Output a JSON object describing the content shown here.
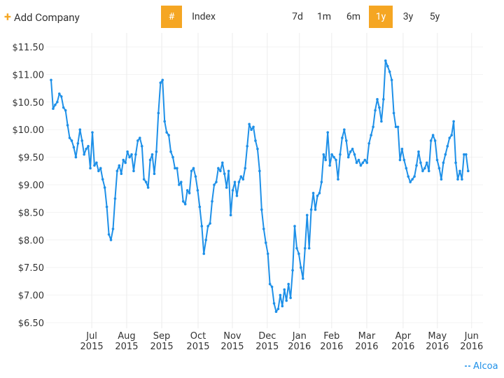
{
  "toolbar": {
    "add_company": "Add Company",
    "index_symbol": "#",
    "index": "Index",
    "ranges": [
      "7d",
      "1m",
      "6m",
      "1y",
      "3y",
      "5y"
    ],
    "selected_range": "1y"
  },
  "chart_data": {
    "type": "line",
    "series": [
      {
        "name": "Alcoa",
        "color": "#1e90e8",
        "values": [
          10.9,
          10.38,
          10.45,
          10.5,
          10.65,
          10.6,
          10.4,
          10.35,
          10.08,
          9.85,
          9.8,
          9.68,
          9.5,
          9.75,
          10.0,
          9.8,
          9.55,
          9.65,
          9.7,
          9.3,
          9.95,
          9.35,
          9.4,
          9.25,
          9.3,
          9.1,
          8.95,
          8.6,
          8.1,
          8.0,
          8.2,
          8.75,
          9.25,
          9.35,
          9.2,
          9.45,
          9.4,
          9.6,
          9.5,
          9.55,
          9.25,
          9.55,
          9.8,
          9.85,
          9.7,
          9.1,
          9.05,
          8.95,
          9.45,
          9.55,
          9.2,
          9.6,
          10.3,
          10.85,
          10.9,
          10.15,
          9.95,
          9.9,
          9.6,
          9.5,
          9.3,
          9.3,
          9.0,
          9.05,
          8.7,
          8.65,
          8.9,
          8.85,
          9.25,
          9.3,
          9.15,
          8.9,
          8.6,
          8.25,
          7.75,
          8.0,
          8.25,
          8.3,
          8.7,
          9.0,
          9.05,
          9.3,
          9.25,
          9.4,
          9.2,
          8.95,
          9.25,
          8.45,
          8.9,
          9.05,
          8.8,
          9.05,
          9.15,
          9.1,
          9.3,
          9.7,
          10.1,
          10.0,
          10.05,
          9.8,
          9.65,
          9.25,
          8.55,
          8.2,
          7.95,
          7.75,
          7.2,
          7.15,
          6.85,
          6.7,
          6.75,
          7.0,
          6.8,
          7.1,
          6.9,
          7.2,
          6.95,
          7.45,
          8.25,
          7.85,
          7.75,
          7.5,
          7.3,
          7.85,
          8.45,
          7.85,
          8.55,
          8.85,
          8.55,
          8.8,
          8.85,
          9.05,
          9.55,
          9.45,
          9.95,
          9.35,
          9.55,
          9.5,
          9.45,
          9.1,
          9.55,
          9.85,
          10.0,
          9.8,
          9.5,
          9.6,
          9.65,
          9.55,
          9.4,
          9.45,
          9.35,
          9.4,
          9.45,
          9.4,
          9.75,
          9.9,
          10.05,
          10.35,
          10.55,
          10.4,
          10.15,
          10.55,
          11.25,
          11.15,
          11.05,
          10.9,
          10.3,
          10.05,
          10.05,
          9.45,
          9.65,
          9.45,
          9.3,
          9.15,
          9.05,
          9.1,
          9.15,
          9.35,
          9.6,
          9.4,
          9.25,
          9.3,
          9.4,
          9.25,
          9.8,
          9.9,
          9.8,
          9.45,
          9.3,
          9.1,
          9.4,
          9.55,
          9.7,
          9.85,
          9.9,
          10.15,
          9.4,
          9.1,
          9.25,
          9.1,
          9.55,
          9.55,
          9.25
        ]
      }
    ],
    "xlim": [
      -4.4,
      209.2
    ],
    "xticks": [
      {
        "value": 19.7,
        "label": "Jul",
        "year": "2015"
      },
      {
        "value": 36.6,
        "label": "Aug",
        "year": "2015"
      },
      {
        "value": 53.6,
        "label": "Sep",
        "year": "2015"
      },
      {
        "value": 71.2,
        "label": "Oct",
        "year": "2015"
      },
      {
        "value": 87.8,
        "label": "Nov",
        "year": "2015"
      },
      {
        "value": 104.7,
        "label": "Dec",
        "year": "2015"
      },
      {
        "value": 120.3,
        "label": "Jan",
        "year": "2016"
      },
      {
        "value": 135.9,
        "label": "Feb",
        "year": "2016"
      },
      {
        "value": 152.9,
        "label": "Mar",
        "year": "2016"
      },
      {
        "value": 170.5,
        "label": "Apr",
        "year": "2016"
      },
      {
        "value": 187.1,
        "label": "May",
        "year": "2016"
      },
      {
        "value": 203.7,
        "label": "Jun",
        "year": "2016"
      }
    ],
    "ylim": [
      6.5,
      11.5
    ],
    "yticks": [
      {
        "value": 11.5,
        "label": "$11.50"
      },
      {
        "value": 11,
        "label": "$11.00"
      },
      {
        "value": 10.5,
        "label": "$10.50"
      },
      {
        "value": 10,
        "label": "$10.00"
      },
      {
        "value": 9.5,
        "label": "$9.50"
      },
      {
        "value": 9,
        "label": "$9.00"
      },
      {
        "value": 8.5,
        "label": "$8.50"
      },
      {
        "value": 8,
        "label": "$8.00"
      },
      {
        "value": 7.5,
        "label": "$7.50"
      },
      {
        "value": 7,
        "label": "$7.00"
      },
      {
        "value": 6.5,
        "label": "$6.50"
      }
    ],
    "grid": true,
    "legend": "bottom-right"
  }
}
